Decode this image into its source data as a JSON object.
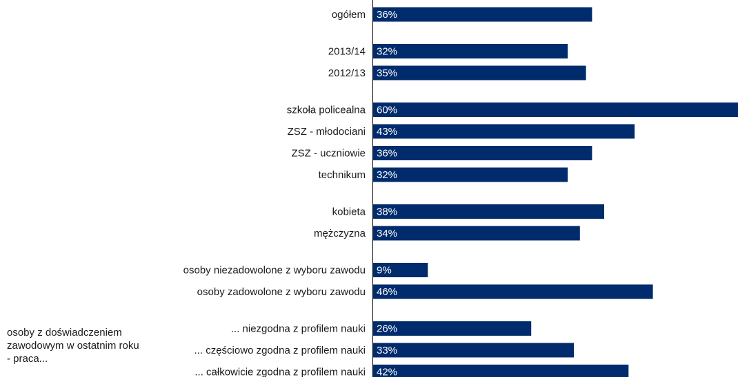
{
  "chart_data": {
    "type": "bar",
    "orientation": "horizontal",
    "bar_color": "#002B6C",
    "value_suffix": "%",
    "xlim": [
      0,
      60
    ],
    "group_label": "osoby z doświadczeniem zawodowym w ostatnim roku - praca...",
    "categories": [
      "ogółem",
      "2013/14",
      "2012/13",
      "szkoła policealna",
      "ZSZ - młodociani",
      "ZSZ - uczniowie",
      "technikum",
      "kobieta",
      "mężczyzna",
      "osoby niezadowolone z wyboru zawodu",
      "osoby zadowolone z wyboru zawodu",
      "... niezgodna z profilem nauki",
      "... częściowo zgodna z profilem nauki",
      "... całkowicie zgodna z profilem nauki"
    ],
    "values": [
      36,
      32,
      35,
      60,
      43,
      36,
      32,
      38,
      34,
      9,
      46,
      26,
      33,
      42
    ],
    "groups": [
      {
        "indices": [
          0
        ]
      },
      {
        "indices": [
          1,
          2
        ]
      },
      {
        "indices": [
          3,
          4,
          5,
          6
        ]
      },
      {
        "indices": [
          7,
          8
        ]
      },
      {
        "indices": [
          9,
          10
        ]
      },
      {
        "indices": [
          11,
          12,
          13
        ]
      }
    ]
  }
}
